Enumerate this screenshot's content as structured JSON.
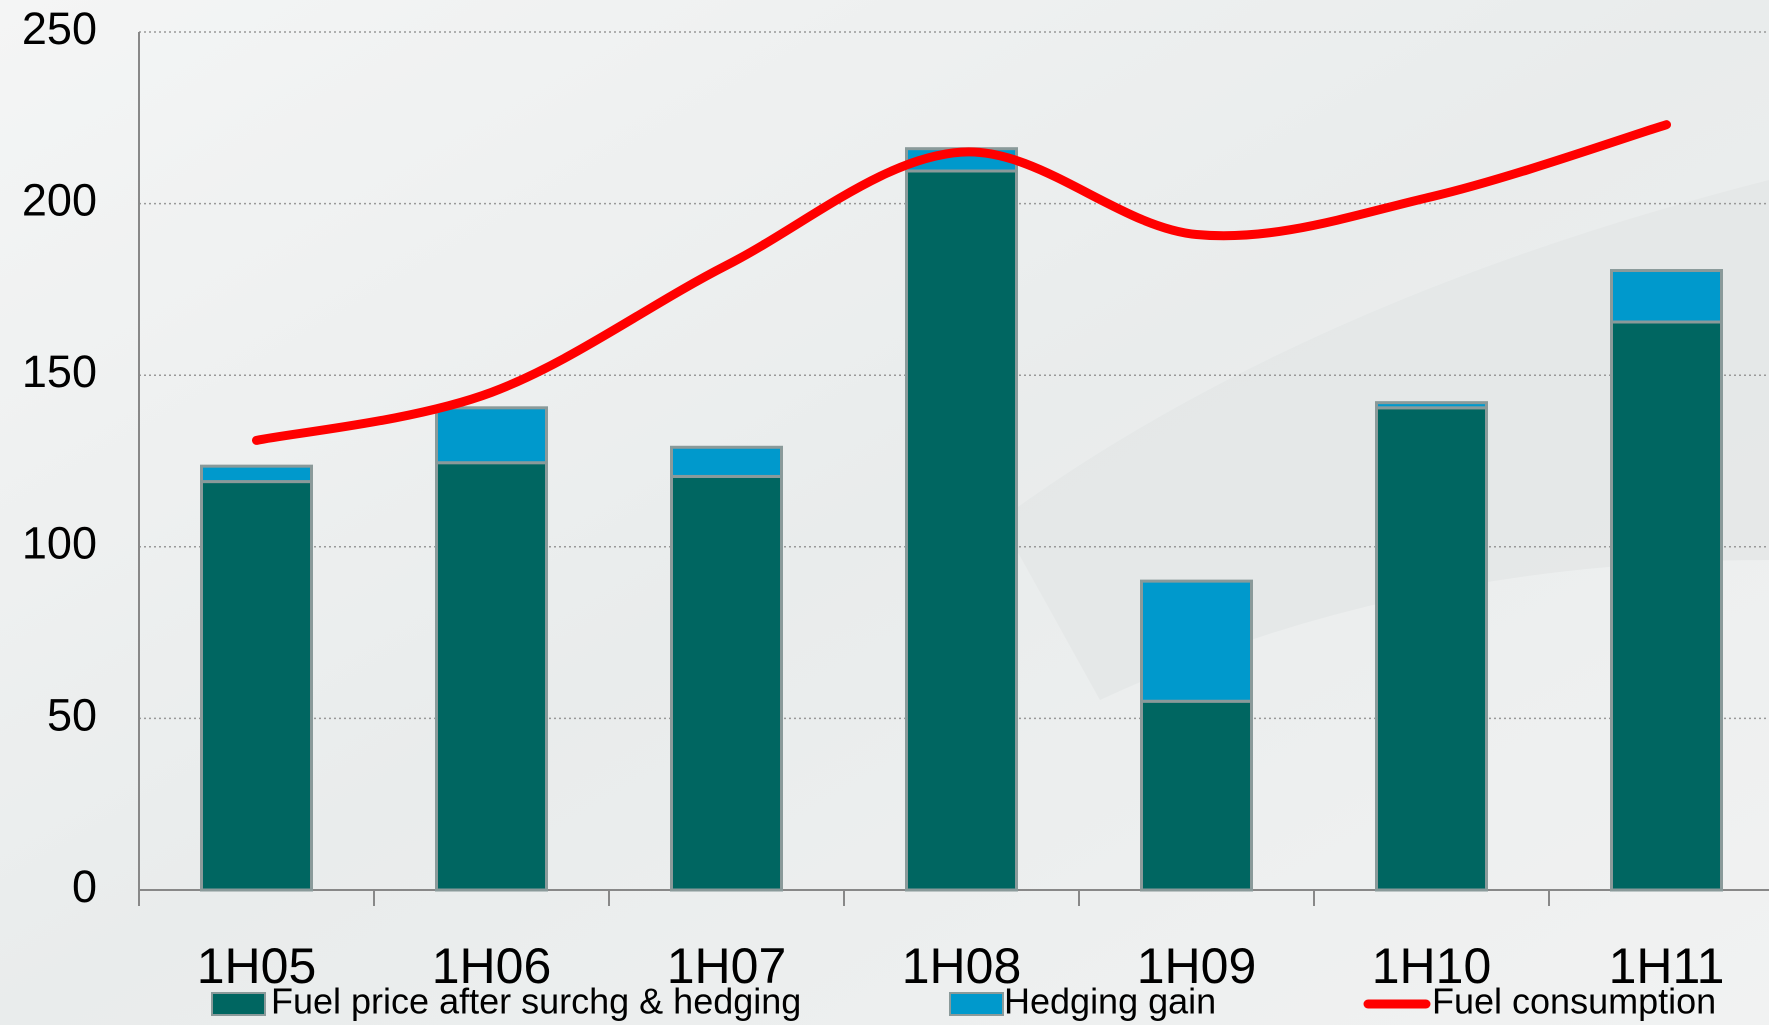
{
  "chart_data": {
    "type": "bar",
    "stacked": true,
    "categories": [
      "1H05",
      "1H06",
      "1H07",
      "1H08",
      "1H09",
      "1H10",
      "1H11"
    ],
    "series": [
      {
        "name": "Fuel price after surchg & hedging",
        "type": "bar",
        "color": "#006661",
        "values": [
          119,
          124.5,
          120.5,
          209.5,
          55,
          140.5,
          165.5
        ]
      },
      {
        "name": "Hedging gain",
        "type": "bar",
        "color": "#0099cc",
        "values": [
          4.5,
          16,
          8.5,
          6.5,
          35,
          1.5,
          15
        ]
      },
      {
        "name": "Fuel consumption",
        "type": "line",
        "color": "#ff0000",
        "values": [
          131,
          145,
          182,
          215,
          191,
          202,
          223
        ]
      }
    ],
    "ylim": [
      0,
      250
    ],
    "yticks": [
      0,
      50,
      100,
      150,
      200,
      250
    ],
    "grid": true,
    "legend": "bottom"
  }
}
